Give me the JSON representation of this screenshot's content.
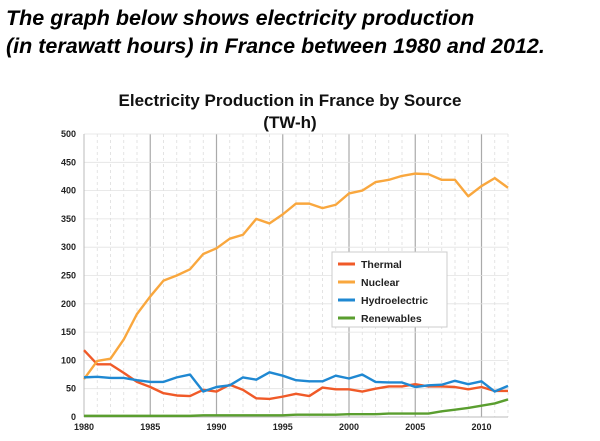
{
  "heading": {
    "line1": "The graph below shows electricity production",
    "line2": "(in terawatt hours) in France between 1980 and 2012."
  },
  "chart_data": {
    "type": "line",
    "title": "Electricity Production in France by Source",
    "subtitle": "(TW-h)",
    "xlabel": "",
    "ylabel": "",
    "xlim": [
      1980,
      2012
    ],
    "ylim": [
      0,
      500
    ],
    "xticks": [
      1980,
      1985,
      1990,
      1995,
      2000,
      2005,
      2010
    ],
    "yticks": [
      0,
      50,
      100,
      150,
      200,
      250,
      300,
      350,
      400,
      450,
      500
    ],
    "grid": true,
    "legend_position": "center-right",
    "x": [
      1980,
      1981,
      1982,
      1983,
      1984,
      1985,
      1986,
      1987,
      1988,
      1989,
      1990,
      1991,
      1992,
      1993,
      1994,
      1995,
      1996,
      1997,
      1998,
      1999,
      2000,
      2001,
      2002,
      2003,
      2004,
      2005,
      2006,
      2007,
      2008,
      2009,
      2010,
      2011,
      2012
    ],
    "series": [
      {
        "name": "Thermal",
        "color": "#f05a28",
        "values": [
          118,
          93,
          93,
          78,
          62,
          53,
          42,
          38,
          37,
          48,
          45,
          57,
          48,
          33,
          32,
          36,
          41,
          37,
          52,
          49,
          49,
          45,
          50,
          54,
          54,
          58,
          54,
          54,
          53,
          49,
          53,
          46,
          46
        ]
      },
      {
        "name": "Nuclear",
        "color": "#f9a73e",
        "values": [
          67,
          99,
          103,
          137,
          182,
          213,
          241,
          250,
          261,
          288,
          298,
          315,
          322,
          350,
          342,
          358,
          377,
          377,
          369,
          375,
          395,
          400,
          415,
          419,
          426,
          430,
          429,
          419,
          419,
          390,
          408,
          422,
          405
        ]
      },
      {
        "name": "Hydroelectric",
        "color": "#1f88d2",
        "values": [
          70,
          71,
          69,
          69,
          65,
          62,
          62,
          70,
          75,
          45,
          53,
          56,
          70,
          66,
          79,
          73,
          65,
          63,
          63,
          73,
          68,
          75,
          62,
          61,
          61,
          53,
          56,
          57,
          64,
          58,
          63,
          45,
          55
        ]
      },
      {
        "name": "Renewables",
        "color": "#5a9e2f",
        "values": [
          2,
          2,
          2,
          2,
          2,
          2,
          2,
          2,
          2,
          3,
          3,
          3,
          3,
          3,
          3,
          3,
          4,
          4,
          4,
          4,
          5,
          5,
          5,
          6,
          6,
          6,
          6,
          10,
          13,
          16,
          20,
          24,
          31
        ]
      }
    ]
  }
}
